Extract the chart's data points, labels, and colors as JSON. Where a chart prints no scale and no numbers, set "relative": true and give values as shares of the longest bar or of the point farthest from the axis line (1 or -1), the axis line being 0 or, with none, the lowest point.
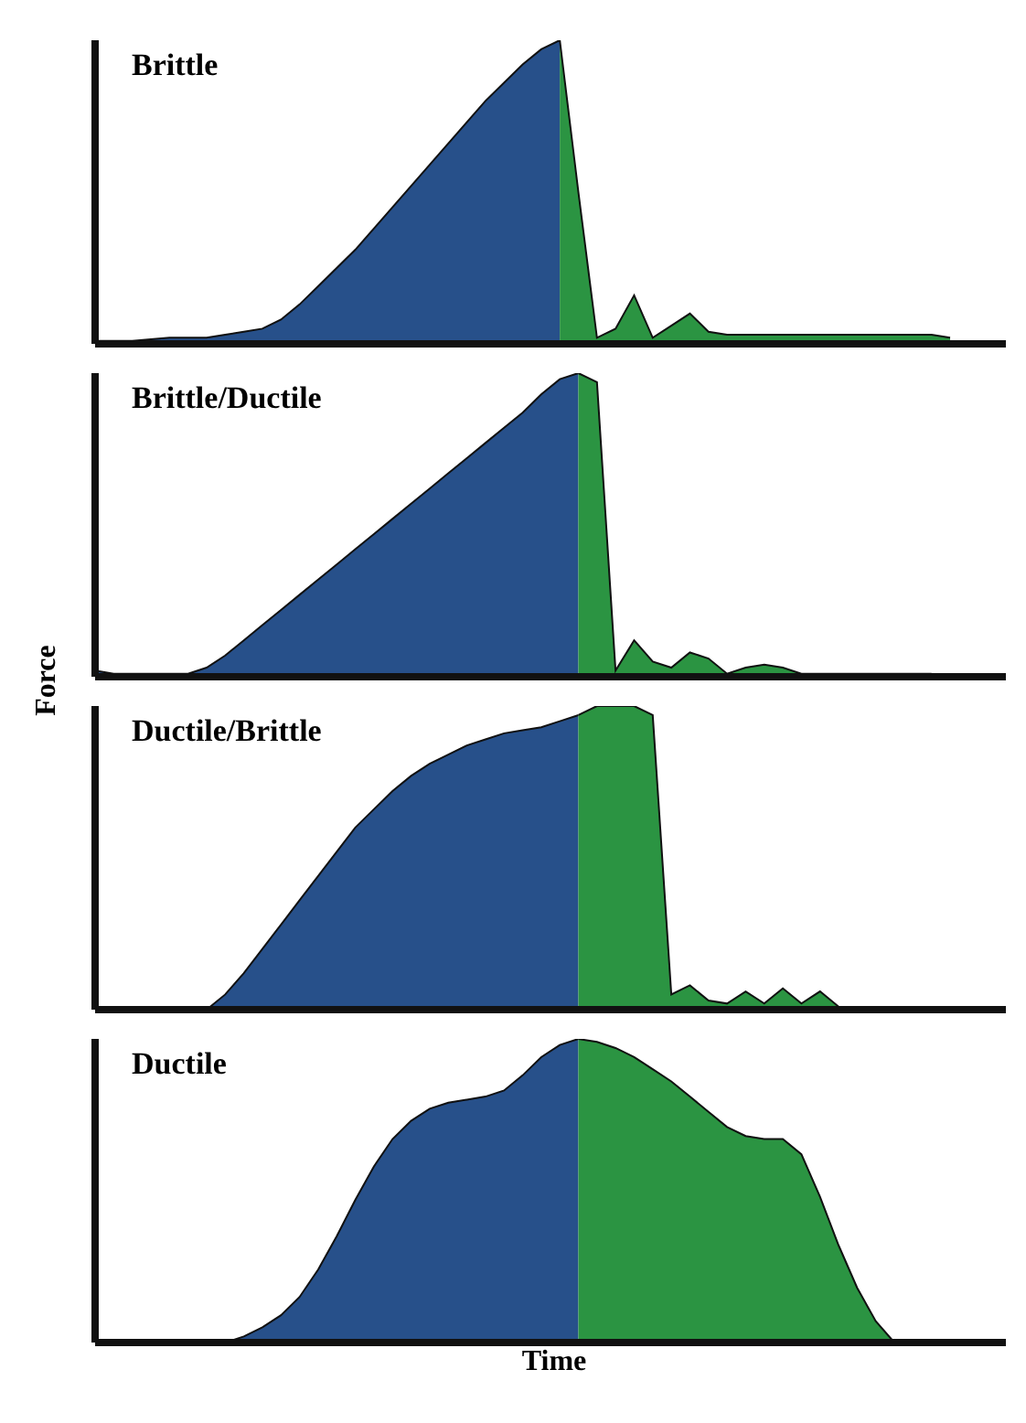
{
  "chart_data": [
    {
      "type": "area",
      "title": "Brittle",
      "relative": true,
      "categories": [
        null,
        null,
        null,
        null,
        null,
        null,
        null,
        null,
        null,
        null,
        null,
        null,
        null,
        null,
        null,
        null,
        null,
        null,
        null,
        null,
        null,
        null,
        null,
        null,
        null,
        null,
        null,
        null,
        null,
        null,
        null,
        null,
        null,
        null,
        null,
        null,
        null,
        null,
        null,
        null,
        null,
        null,
        null,
        null,
        null,
        null,
        null,
        null,
        null,
        null
      ],
      "series": [
        {
          "color": "#27508a",
          "values": [
            0.01,
            0.01,
            0.01,
            0.015,
            0.02,
            0.02,
            0.02,
            0.03,
            0.04,
            0.05,
            0.08,
            0.13,
            0.19,
            0.25,
            0.31,
            0.38,
            0.45,
            0.52,
            0.59,
            0.66,
            0.73,
            0.8,
            0.86,
            0.92,
            0.97,
            1.0,
            null,
            null,
            null,
            null,
            null,
            null,
            null,
            null,
            null,
            null,
            null,
            null,
            null,
            null,
            null,
            null,
            null,
            null,
            null,
            null,
            null,
            null,
            null,
            null
          ]
        },
        {
          "color": "#2b9442",
          "values": [
            null,
            null,
            null,
            null,
            null,
            null,
            null,
            null,
            null,
            null,
            null,
            null,
            null,
            null,
            null,
            null,
            null,
            null,
            null,
            null,
            null,
            null,
            null,
            null,
            null,
            1.0,
            0.5,
            0.02,
            0.05,
            0.16,
            0.02,
            0.06,
            0.1,
            0.04,
            0.03,
            0.03,
            0.03,
            0.03,
            0.03,
            0.03,
            0.03,
            0.03,
            0.03,
            0.03,
            0.03,
            0.03,
            0.02,
            null,
            null,
            null
          ]
        }
      ]
    },
    {
      "type": "area",
      "title": "Brittle/Ductile",
      "ylabel": "Force",
      "relative": true,
      "categories": [
        null,
        null,
        null,
        null,
        null,
        null,
        null,
        null,
        null,
        null,
        null,
        null,
        null,
        null,
        null,
        null,
        null,
        null,
        null,
        null,
        null,
        null,
        null,
        null,
        null,
        null,
        null,
        null,
        null,
        null,
        null,
        null,
        null,
        null,
        null,
        null,
        null,
        null,
        null,
        null,
        null,
        null,
        null,
        null,
        null,
        null,
        null,
        null,
        null,
        null
      ],
      "series": [
        {
          "color": "#27508a",
          "values": [
            0.02,
            0.01,
            0.01,
            0.01,
            0.01,
            0.01,
            0.03,
            0.07,
            0.12,
            0.17,
            0.22,
            0.27,
            0.32,
            0.37,
            0.42,
            0.47,
            0.52,
            0.57,
            0.62,
            0.67,
            0.72,
            0.77,
            0.82,
            0.87,
            0.93,
            0.98,
            1.0,
            null,
            null,
            null,
            null,
            null,
            null,
            null,
            null,
            null,
            null,
            null,
            null,
            null,
            null,
            null,
            null,
            null,
            null,
            null,
            null,
            null,
            null,
            null
          ]
        },
        {
          "color": "#2b9442",
          "values": [
            null,
            null,
            null,
            null,
            null,
            null,
            null,
            null,
            null,
            null,
            null,
            null,
            null,
            null,
            null,
            null,
            null,
            null,
            null,
            null,
            null,
            null,
            null,
            null,
            null,
            null,
            1.0,
            0.97,
            0.02,
            0.12,
            0.05,
            0.03,
            0.08,
            0.06,
            0.01,
            0.03,
            0.04,
            0.03,
            0.01,
            0.01,
            0.01,
            0.01,
            0.01,
            0.01,
            0.01,
            0.01,
            null,
            null,
            null,
            null
          ]
        }
      ]
    },
    {
      "type": "area",
      "title": "Ductile/Brittle",
      "relative": true,
      "categories": [
        null,
        null,
        null,
        null,
        null,
        null,
        null,
        null,
        null,
        null,
        null,
        null,
        null,
        null,
        null,
        null,
        null,
        null,
        null,
        null,
        null,
        null,
        null,
        null,
        null,
        null,
        null,
        null,
        null,
        null,
        null,
        null,
        null,
        null,
        null,
        null,
        null,
        null,
        null,
        null,
        null,
        null,
        null,
        null,
        null,
        null,
        null,
        null,
        null,
        null
      ],
      "series": [
        {
          "color": "#27508a",
          "values": [
            null,
            null,
            null,
            null,
            null,
            null,
            0,
            0.05,
            0.12,
            0.2,
            0.28,
            0.36,
            0.44,
            0.52,
            0.6,
            0.66,
            0.72,
            0.77,
            0.81,
            0.84,
            0.87,
            0.89,
            0.91,
            0.92,
            0.93,
            0.95,
            0.97,
            null,
            null,
            null,
            null,
            null,
            null,
            null,
            null,
            null,
            null,
            null,
            null,
            null,
            null,
            null,
            null,
            null,
            null,
            null,
            null,
            null,
            null,
            null
          ]
        },
        {
          "color": "#2b9442",
          "values": [
            null,
            null,
            null,
            null,
            null,
            null,
            null,
            null,
            null,
            null,
            null,
            null,
            null,
            null,
            null,
            null,
            null,
            null,
            null,
            null,
            null,
            null,
            null,
            null,
            null,
            null,
            0.97,
            1.0,
            1.0,
            1.0,
            0.97,
            0.05,
            0.08,
            0.03,
            0.02,
            0.06,
            0.02,
            0.07,
            0.02,
            0.06,
            0.01,
            null,
            null,
            null,
            null,
            null,
            null,
            null,
            null,
            null
          ]
        }
      ]
    },
    {
      "type": "area",
      "title": "Ductile",
      "xlabel": "Time",
      "relative": true,
      "categories": [
        null,
        null,
        null,
        null,
        null,
        null,
        null,
        null,
        null,
        null,
        null,
        null,
        null,
        null,
        null,
        null,
        null,
        null,
        null,
        null,
        null,
        null,
        null,
        null,
        null,
        null,
        null,
        null,
        null,
        null,
        null,
        null,
        null,
        null,
        null,
        null,
        null,
        null,
        null,
        null,
        null,
        null,
        null,
        null,
        null,
        null,
        null,
        null,
        null,
        null
      ],
      "series": [
        {
          "color": "#27508a",
          "values": [
            null,
            null,
            null,
            null,
            null,
            null,
            null,
            0,
            0.02,
            0.05,
            0.09,
            0.15,
            0.24,
            0.35,
            0.47,
            0.58,
            0.67,
            0.73,
            0.77,
            0.79,
            0.8,
            0.81,
            0.83,
            0.88,
            0.94,
            0.98,
            1.0,
            null,
            null,
            null,
            null,
            null,
            null,
            null,
            null,
            null,
            null,
            null,
            null,
            null,
            null,
            null,
            null,
            null,
            null,
            null,
            null,
            null,
            null,
            null
          ]
        },
        {
          "color": "#2b9442",
          "values": [
            null,
            null,
            null,
            null,
            null,
            null,
            null,
            null,
            null,
            null,
            null,
            null,
            null,
            null,
            null,
            null,
            null,
            null,
            null,
            null,
            null,
            null,
            null,
            null,
            null,
            null,
            1.0,
            0.99,
            0.97,
            0.94,
            0.9,
            0.86,
            0.81,
            0.76,
            0.71,
            0.68,
            0.67,
            0.67,
            0.62,
            0.48,
            0.32,
            0.18,
            0.07,
            0,
            null,
            null,
            null,
            null,
            null,
            null
          ]
        }
      ]
    }
  ]
}
